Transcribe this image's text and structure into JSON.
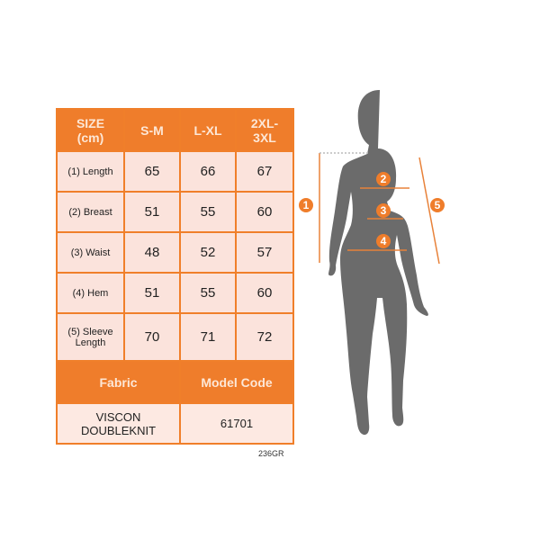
{
  "table": {
    "header": [
      "SIZE\n(cm)",
      "S-M",
      "L-XL",
      "2XL-\n3XL"
    ],
    "rows": [
      {
        "label": "(1) Length",
        "values": [
          "65",
          "66",
          "67"
        ]
      },
      {
        "label": "(2) Breast",
        "values": [
          "51",
          "55",
          "60"
        ]
      },
      {
        "label": "(3) Waist",
        "values": [
          "48",
          "52",
          "57"
        ]
      },
      {
        "label": "(4) Hem",
        "values": [
          "51",
          "55",
          "60"
        ]
      },
      {
        "label": "(5) Sleeve Length",
        "values": [
          "70",
          "71",
          "72"
        ]
      }
    ],
    "fabric_label": "Fabric",
    "model_code_label": "Model Code",
    "fabric": "VISCON DOUBLEKNIT",
    "model_code": "61701"
  },
  "code": "236GR",
  "markers": [
    "1",
    "2",
    "3",
    "4",
    "5"
  ],
  "colors": {
    "accent": "#ef7d2b",
    "cell": "#fbe3dc",
    "silhouette": "#6b6b6b"
  }
}
